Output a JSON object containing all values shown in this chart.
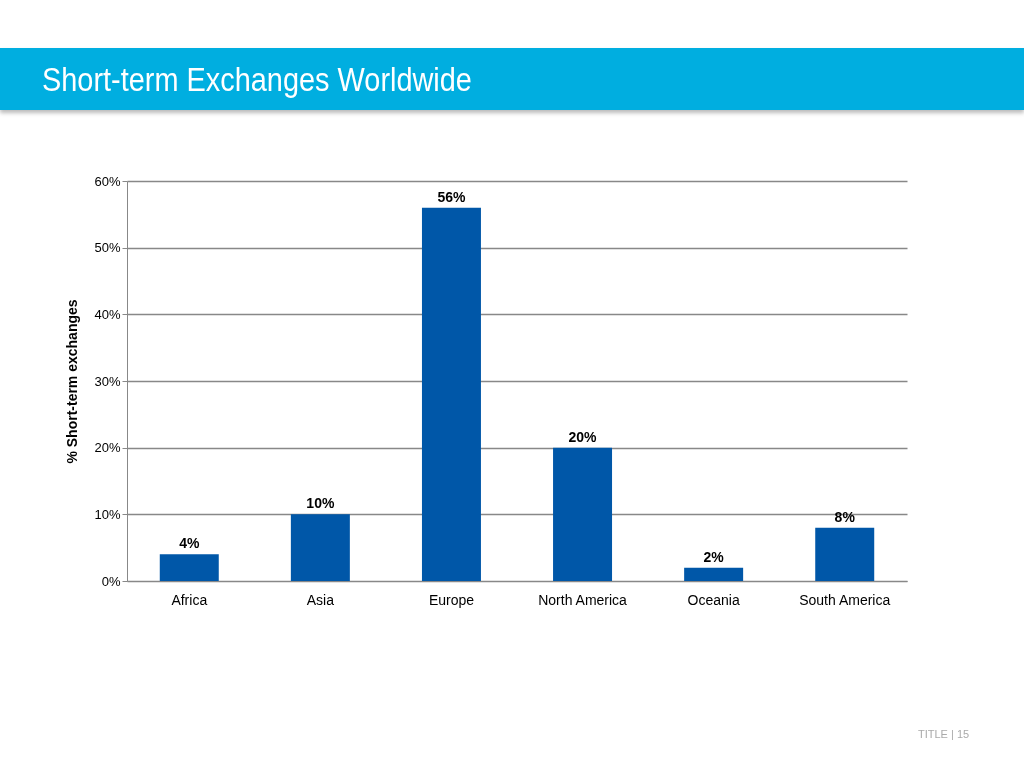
{
  "chart_data": {
    "type": "bar",
    "title": "Short-term Exchanges Worldwide",
    "ylabel": "% Short-term exchanges",
    "categories": [
      "Africa",
      "Asia",
      "Europe",
      "North America",
      "Oceania",
      "South America"
    ],
    "values": [
      4,
      10,
      56,
      20,
      2,
      8
    ],
    "value_labels": [
      "4%",
      "10%",
      "56%",
      "20%",
      "2%",
      "8%"
    ],
    "color": "#0057a8",
    "ylim": [
      0,
      60
    ],
    "yticks": [
      {
        "value": 0,
        "label": "0%"
      },
      {
        "value": 10,
        "label": "10%"
      },
      {
        "value": 20,
        "label": "20%"
      },
      {
        "value": 30,
        "label": "30%"
      },
      {
        "value": 40,
        "label": "40%"
      },
      {
        "value": 50,
        "label": "50%"
      },
      {
        "value": 60,
        "label": "60%"
      }
    ],
    "grid": "y",
    "annotations": [
      "TITLE | 15"
    ]
  }
}
